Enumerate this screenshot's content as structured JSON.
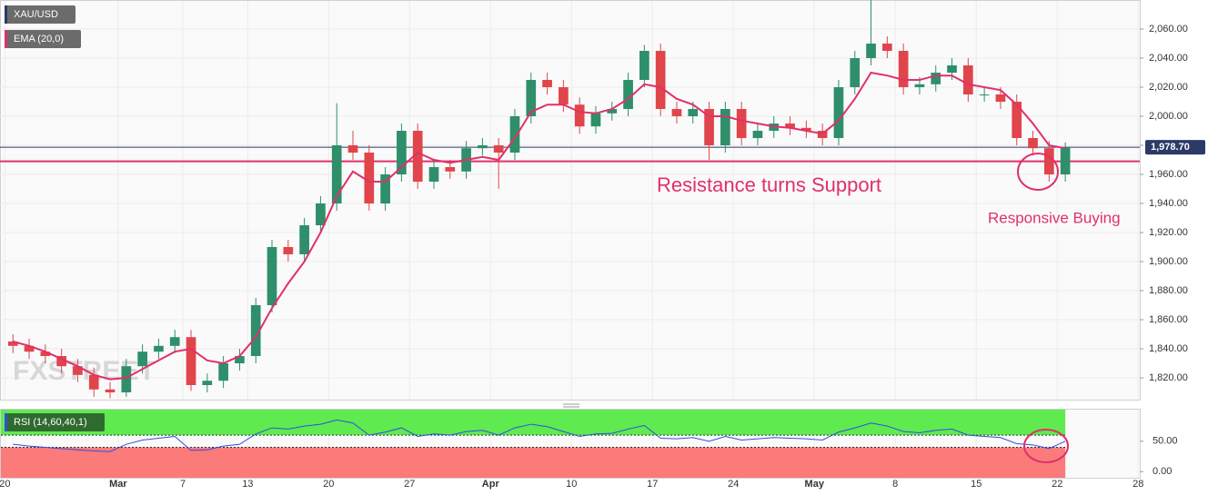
{
  "chart_data": [
    {
      "type": "candlestick",
      "title": "XAU/USD",
      "watermark": "FXSTREET",
      "x": [
        0,
        1,
        2,
        3,
        4,
        5,
        6,
        7,
        8,
        9,
        10,
        11,
        12,
        13,
        14,
        15,
        16,
        17,
        18,
        19,
        20,
        21,
        22,
        23,
        24,
        25,
        26,
        27,
        28,
        29,
        30,
        31,
        32,
        33,
        34,
        35,
        36,
        37,
        38,
        39,
        40,
        41,
        42,
        43,
        44,
        45,
        46,
        47,
        48,
        49,
        50,
        51,
        52,
        53,
        54,
        55,
        56,
        57,
        58,
        59,
        60,
        61,
        62,
        63,
        64,
        65
      ],
      "open": [
        1845,
        1842,
        1838,
        1835,
        1828,
        1822,
        1812,
        1810,
        1828,
        1838,
        1842,
        1848,
        1815,
        1818,
        1830,
        1835,
        1870,
        1910,
        1905,
        1925,
        1940,
        1980,
        1975,
        1940,
        1960,
        1990,
        1955,
        1965,
        1962,
        1978,
        1980,
        1975,
        2000,
        2025,
        2020,
        2008,
        1993,
        2002,
        2005,
        2025,
        2045,
        2005,
        2000,
        2005,
        1980,
        2005,
        1985,
        1990,
        1995,
        1992,
        1990,
        1985,
        2020,
        2040,
        2050,
        2045,
        2020,
        2022,
        2030,
        2035,
        2015,
        2015,
        2010,
        1985,
        1978,
        1960
      ],
      "high": [
        1850,
        1847,
        1843,
        1840,
        1833,
        1827,
        1817,
        1833,
        1843,
        1847,
        1853,
        1853,
        1823,
        1835,
        1840,
        1875,
        1915,
        1915,
        1930,
        1945,
        2009,
        1990,
        1980,
        1965,
        1995,
        1995,
        1970,
        1970,
        1983,
        1985,
        1985,
        2005,
        2030,
        2030,
        2025,
        2013,
        2007,
        2010,
        2030,
        2049,
        2050,
        2010,
        2010,
        2010,
        2010,
        2010,
        1995,
        2000,
        2000,
        1997,
        1995,
        2025,
        2045,
        2080,
        2055,
        2050,
        2027,
        2035,
        2040,
        2040,
        2020,
        2020,
        2015,
        1990,
        1983,
        1982
      ],
      "low": [
        1837,
        1833,
        1830,
        1823,
        1817,
        1807,
        1806,
        1807,
        1823,
        1833,
        1837,
        1811,
        1810,
        1813,
        1825,
        1830,
        1865,
        1900,
        1900,
        1920,
        1935,
        1970,
        1935,
        1935,
        1955,
        1950,
        1950,
        1957,
        1957,
        1973,
        1950,
        1970,
        1995,
        2015,
        2003,
        1988,
        1988,
        1997,
        2000,
        2020,
        2000,
        1995,
        1995,
        1970,
        1975,
        1980,
        1980,
        1985,
        1987,
        1985,
        1980,
        1980,
        2015,
        2035,
        2040,
        2015,
        2015,
        2017,
        2025,
        2010,
        2010,
        2005,
        1980,
        1973,
        1955,
        1955
      ],
      "close": [
        1842,
        1838,
        1835,
        1828,
        1822,
        1812,
        1810,
        1828,
        1838,
        1842,
        1848,
        1815,
        1818,
        1830,
        1835,
        1870,
        1910,
        1905,
        1925,
        1940,
        1980,
        1975,
        1940,
        1960,
        1990,
        1955,
        1965,
        1962,
        1978,
        1980,
        1975,
        2000,
        2025,
        2020,
        2008,
        1993,
        2002,
        2005,
        2025,
        2045,
        2005,
        2000,
        2005,
        1980,
        2005,
        1985,
        1990,
        1995,
        1992,
        1990,
        1985,
        2020,
        2040,
        2050,
        2045,
        2020,
        2022,
        2030,
        2035,
        2015,
        2015,
        2010,
        1985,
        1978,
        1960,
        1978.7
      ],
      "up_color": "#2e8f6a",
      "down_color": "#e0454b",
      "series": [
        {
          "name": "EMA (20,0)",
          "color": "#e0306a",
          "values": [
            1845,
            1842,
            1838,
            1833,
            1828,
            1822,
            1819,
            1820,
            1826,
            1832,
            1838,
            1840,
            1832,
            1830,
            1835,
            1848,
            1868,
            1885,
            1900,
            1920,
            1945,
            1962,
            1955,
            1955,
            1965,
            1975,
            1970,
            1968,
            1970,
            1972,
            1970,
            1985,
            2003,
            2008,
            2008,
            2003,
            2002,
            2005,
            2012,
            2022,
            2020,
            2012,
            2008,
            2000,
            2000,
            1997,
            1995,
            1993,
            1992,
            1990,
            1988,
            1997,
            2012,
            2030,
            2028,
            2025,
            2025,
            2028,
            2028,
            2022,
            2020,
            2018,
            2008,
            1995,
            1980,
            1978
          ]
        }
      ],
      "ylim": [
        1805,
        2080
      ],
      "yticks": [
        {
          "value": 1820,
          "label": "1,820.00"
        },
        {
          "value": 1840,
          "label": "1,840.00"
        },
        {
          "value": 1860,
          "label": "1,860.00"
        },
        {
          "value": 1880,
          "label": "1,880.00"
        },
        {
          "value": 1900,
          "label": "1,900.00"
        },
        {
          "value": 1920,
          "label": "1,920.00"
        },
        {
          "value": 1940,
          "label": "1,940.00"
        },
        {
          "value": 1960,
          "label": "1,960.00"
        },
        {
          "value": 1980,
          "label": "1,980.00"
        },
        {
          "value": 2000,
          "label": "2,000.00"
        },
        {
          "value": 2020,
          "label": "2,020.00"
        },
        {
          "value": 2040,
          "label": "2,040.00"
        },
        {
          "value": 2060,
          "label": "2,060.00"
        }
      ],
      "last_price": {
        "value": 1978.7,
        "label": "1,978.70"
      },
      "support_level": 1969,
      "support_color": "#e0306a",
      "annotations": [
        "Resistance turns Support",
        "Responsive Buying"
      ],
      "grid": true
    },
    {
      "type": "line",
      "series": [
        {
          "name": "RSI (14,60,40,1)",
          "color": "#2f4fe0",
          "values": [
            45,
            42,
            40,
            38,
            36,
            34,
            33,
            45,
            52,
            55,
            58,
            35,
            36,
            42,
            45,
            62,
            72,
            70,
            75,
            78,
            85,
            80,
            60,
            65,
            72,
            58,
            62,
            60,
            66,
            68,
            60,
            72,
            78,
            74,
            66,
            58,
            62,
            63,
            70,
            76,
            55,
            54,
            56,
            50,
            58,
            52,
            54,
            56,
            55,
            54,
            52,
            65,
            72,
            80,
            75,
            66,
            64,
            68,
            70,
            60,
            58,
            56,
            46,
            44,
            38,
            50
          ]
        }
      ],
      "x": [
        0,
        1,
        2,
        3,
        4,
        5,
        6,
        7,
        8,
        9,
        10,
        11,
        12,
        13,
        14,
        15,
        16,
        17,
        18,
        19,
        20,
        21,
        22,
        23,
        24,
        25,
        26,
        27,
        28,
        29,
        30,
        31,
        32,
        33,
        34,
        35,
        36,
        37,
        38,
        39,
        40,
        41,
        42,
        43,
        44,
        45,
        46,
        47,
        48,
        49,
        50,
        51,
        52,
        53,
        54,
        55,
        56,
        57,
        58,
        59,
        60,
        61,
        62,
        63,
        64,
        65
      ],
      "upper_band": 60,
      "lower_band": 40,
      "upper_color": "#5fea4f",
      "lower_color": "#fb7a7a",
      "ylim": [
        -10,
        102
      ],
      "yticks": [
        {
          "value": 0,
          "label": "0.00"
        },
        {
          "value": 50,
          "label": "50.00"
        }
      ],
      "xlim": [
        -0.3,
        70.1
      ],
      "xticks": [
        {
          "value": 0,
          "label": "20"
        },
        {
          "value": 7,
          "label": "Mar"
        },
        {
          "value": 11,
          "label": "7"
        },
        {
          "value": 15,
          "label": "13"
        },
        {
          "value": 20,
          "label": "20"
        },
        {
          "value": 25,
          "label": "27"
        },
        {
          "value": 30,
          "label": "Apr"
        },
        {
          "value": 35,
          "label": "10"
        },
        {
          "value": 40,
          "label": "17"
        },
        {
          "value": 45,
          "label": "24"
        },
        {
          "value": 50,
          "label": "May"
        },
        {
          "value": 55,
          "label": "8"
        },
        {
          "value": 60,
          "label": "15"
        },
        {
          "value": 65,
          "label": "22"
        },
        {
          "value": 70,
          "label": "28"
        }
      ]
    }
  ]
}
